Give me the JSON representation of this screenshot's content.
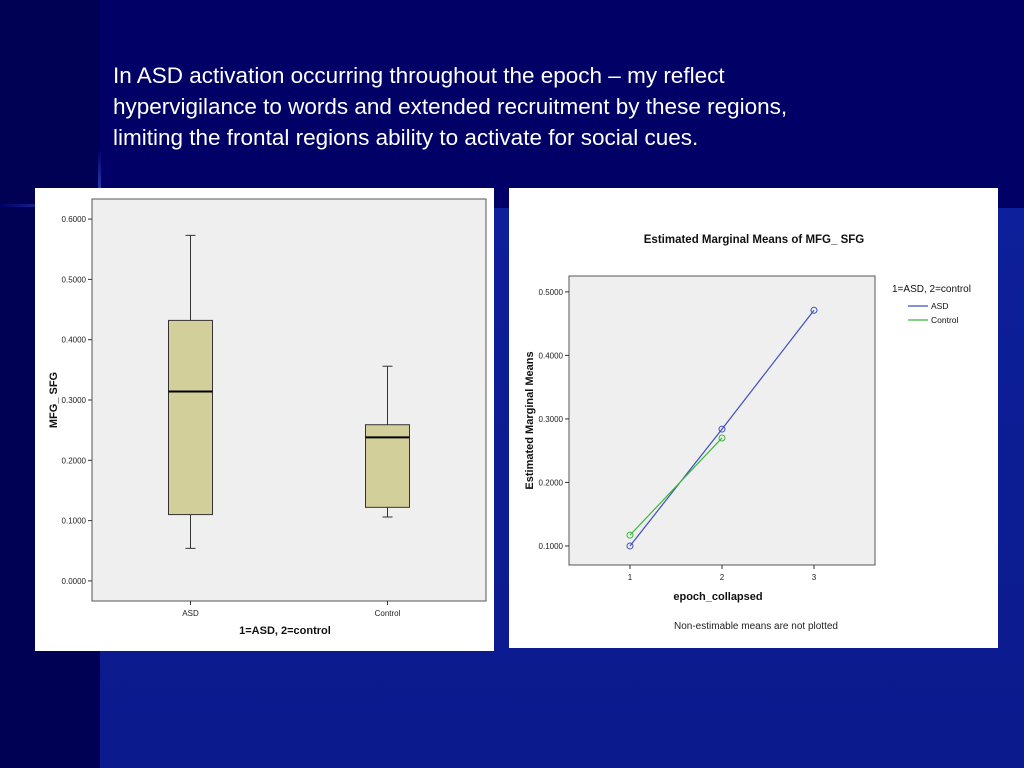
{
  "slide": {
    "caption": "In ASD activation occurring throughout the epoch – my reflect hypervigilance to words and extended recruitment by these regions, limiting the frontal regions ability to activate for social cues."
  },
  "chart_data": [
    {
      "type": "box",
      "title": "",
      "xlabel": "1=ASD, 2=control",
      "ylabel": "MFG_ SFG",
      "ylim": [
        -0.0333,
        0.6333
      ],
      "yticks": [
        "0.0000",
        "0.1000",
        "0.2000",
        "0.3000",
        "0.4000",
        "0.5000",
        "0.6000"
      ],
      "categories": [
        "ASD",
        "Control"
      ],
      "boxes": [
        {
          "name": "ASD",
          "min": 0.054,
          "q1": 0.11,
          "median": 0.314,
          "q3": 0.432,
          "max": 0.573
        },
        {
          "name": "Control",
          "min": 0.106,
          "q1": 0.122,
          "median": 0.238,
          "q3": 0.259,
          "max": 0.356
        }
      ],
      "box_color": "#d3cf9a",
      "plot_background": "#efefef"
    },
    {
      "type": "line",
      "title": "Estimated Marginal Means of MFG_  SFG",
      "xlabel": "epoch_collapsed",
      "ylabel": "Estimated Marginal Means",
      "x": [
        1,
        2,
        3
      ],
      "ylim": [
        0.07,
        0.525
      ],
      "yticks": [
        "0.1000",
        "0.2000",
        "0.3000",
        "0.4000",
        "0.5000"
      ],
      "legend_title": "1=ASD, 2=control",
      "legend_position": "right",
      "series": [
        {
          "name": "ASD",
          "color": "#3d4fc0",
          "values": [
            0.1,
            0.284,
            0.471
          ]
        },
        {
          "name": "Control",
          "color": "#3cb83c",
          "values": [
            0.117,
            0.27,
            null
          ]
        }
      ],
      "footnote": "Non-estimable means are not plotted",
      "plot_background": "#efefef"
    }
  ]
}
